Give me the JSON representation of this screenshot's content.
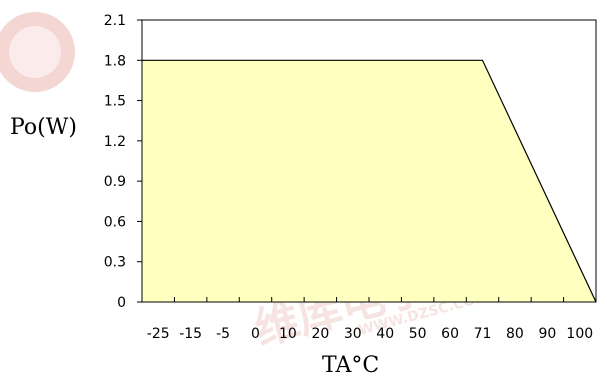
{
  "chart_data": {
    "type": "area",
    "title": "",
    "xlabel": "TA°C",
    "ylabel": "Po(W)",
    "x": [
      -25,
      71,
      100
    ],
    "values": [
      1.8,
      1.8,
      0
    ],
    "xticks": [
      "-25",
      "-15",
      "-5",
      "0",
      "10",
      "20",
      "30",
      "40",
      "50",
      "60",
      "71",
      "80",
      "90",
      "100"
    ],
    "yticks": [
      0,
      0.3,
      0.6,
      0.9,
      1.2,
      1.5,
      1.8,
      2.1
    ],
    "ytick_labels": [
      "0",
      "0.3",
      "0.6",
      "0.9",
      "1.2",
      "1.5",
      "1.8",
      "2.1"
    ],
    "ylim": [
      0,
      2.1
    ],
    "grid": false,
    "fill_color": "#ffffc0",
    "line_color": "#000000"
  },
  "watermark": {
    "text_cn": "维库电子市场网",
    "text_url": "WWW.DZSC.COM"
  }
}
